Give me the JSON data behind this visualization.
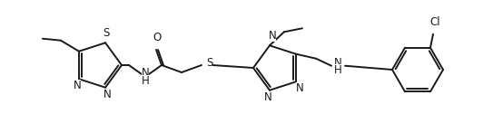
{
  "bg_color": "#ffffff",
  "line_color": "#1a1a1a",
  "line_width": 1.4,
  "font_size": 8.5,
  "fig_width": 5.43,
  "fig_height": 1.47,
  "dpi": 100,
  "xlim": [
    0,
    543
  ],
  "ylim": [
    0,
    147
  ]
}
